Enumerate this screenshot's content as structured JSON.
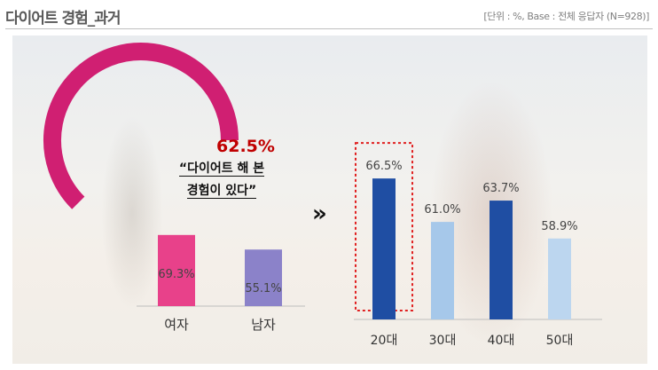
{
  "header": {
    "title": "다이어트 경험_과거",
    "base_note": "[단위 : %, Base : 전체 응답자 (N=928)]"
  },
  "callout": {
    "overall_value": "62.5%",
    "quote_line1": "“다이어트 해 본",
    "quote_line2": "경험이 있다”",
    "arrow_glyph": "»"
  },
  "colors": {
    "ring": "#d01f72",
    "female_bar": "#e8418a",
    "male_bar": "#8b82c9",
    "dark_bar": "#1f4ea3",
    "light_bar": "#a6c8ea",
    "lightest_bar": "#bcd6ef",
    "highlight": "#e02020"
  },
  "chart_data": [
    {
      "type": "pie",
      "overall_percent": 62.5,
      "label": "62.5%"
    },
    {
      "type": "bar",
      "categories": [
        "여자",
        "남자"
      ],
      "values": [
        69.3,
        55.1
      ],
      "value_labels": [
        "69.3%",
        "55.1%"
      ],
      "ylim": [
        0,
        100
      ]
    },
    {
      "type": "bar",
      "categories": [
        "20대",
        "30대",
        "40대",
        "50대"
      ],
      "values": [
        66.5,
        61.0,
        63.7,
        58.9
      ],
      "value_labels": [
        "66.5%",
        "61.0%",
        "63.7%",
        "58.9%"
      ],
      "highlighted_category": "20대",
      "ylim": [
        0,
        100
      ]
    }
  ]
}
